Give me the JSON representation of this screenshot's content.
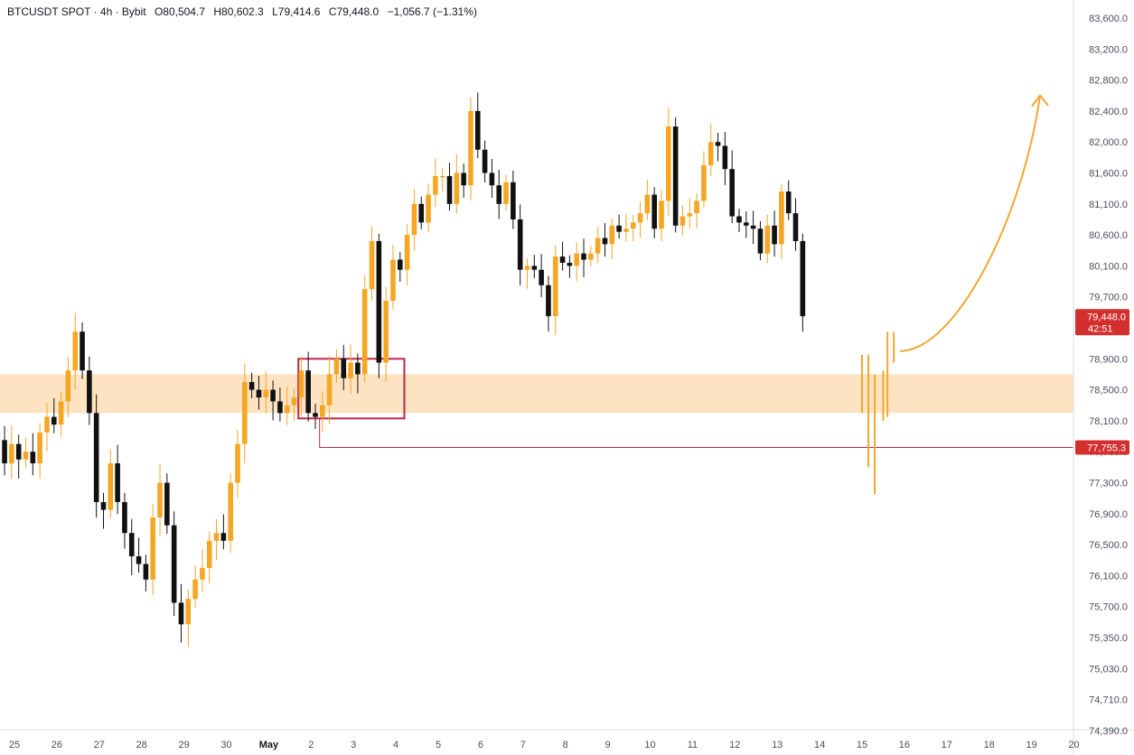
{
  "header": {
    "symbol": "BTCUSDT SPOT · 4h · Bybit",
    "open_label": "O",
    "open": "80,504.7",
    "high_label": "H",
    "high": "80,602.3",
    "low_label": "L",
    "low": "79,414.6",
    "close_label": "C",
    "close": "79,448.0",
    "change": "−1,056.7 (−1.31%)"
  },
  "colors": {
    "up": "#f5a623",
    "down": "#111111",
    "zone": "#fde3c2",
    "box": "#c0264a",
    "level_line": "#c0264a",
    "tag_red": "#d32f2f",
    "arrow": "#f0a830"
  },
  "chart_data": {
    "type": "candlestick",
    "symbol": "BTCUSDT SPOT · 4h · Bybit",
    "ylim": [
      74100,
      83800
    ],
    "y_ticks": [
      "83,600.0",
      "83,200.0",
      "82,800.0",
      "82,400.0",
      "82,000.0",
      "81,600.0",
      "81,100.0",
      "80,600.0",
      "80,100.0",
      "79,700.0",
      "79,300.0",
      "78,900.0",
      "78,500.0",
      "78,100.0",
      "77,700.0",
      "77,300.0",
      "76,900.0",
      "76,500.0",
      "76,100.0",
      "75,700.0",
      "75,350.0",
      "75,030.0",
      "74,710.0",
      "74,390.0"
    ],
    "y_tick_values": [
      83600,
      83200,
      82800,
      82400,
      82000,
      81600,
      81100,
      80600,
      80100,
      79700,
      79300,
      78900,
      78500,
      78100,
      77700,
      77300,
      76900,
      76500,
      76100,
      75700,
      75350,
      75030,
      74710,
      74390
    ],
    "x_ticks": [
      {
        "label": "25",
        "day": 25
      },
      {
        "label": "26",
        "day": 26
      },
      {
        "label": "27",
        "day": 27
      },
      {
        "label": "28",
        "day": 28
      },
      {
        "label": "29",
        "day": 29
      },
      {
        "label": "30",
        "day": 30
      },
      {
        "label": "May",
        "day": 31,
        "month": true
      },
      {
        "label": "2",
        "day": 32
      },
      {
        "label": "3",
        "day": 33
      },
      {
        "label": "4",
        "day": 34
      },
      {
        "label": "5",
        "day": 35
      },
      {
        "label": "6",
        "day": 36
      },
      {
        "label": "7",
        "day": 37
      },
      {
        "label": "8",
        "day": 38
      },
      {
        "label": "9",
        "day": 39
      },
      {
        "label": "10",
        "day": 40
      },
      {
        "label": "11",
        "day": 41
      },
      {
        "label": "12",
        "day": 42
      },
      {
        "label": "13",
        "day": 43
      },
      {
        "label": "14",
        "day": 44
      },
      {
        "label": "15",
        "day": 45
      },
      {
        "label": "16",
        "day": 46
      },
      {
        "label": "17",
        "day": 47
      },
      {
        "label": "18",
        "day": 48
      },
      {
        "label": "19",
        "day": 49
      },
      {
        "label": "20",
        "day": 50
      }
    ],
    "day_start": 24.6,
    "candles_per_day": 6,
    "closes": [
      77850,
      77550,
      77800,
      77600,
      77700,
      77550,
      77950,
      78150,
      78050,
      78350,
      78750,
      79250,
      78750,
      78200,
      77050,
      76950,
      77550,
      77050,
      76650,
      76350,
      76250,
      76050,
      76850,
      77300,
      76750,
      75750,
      75500,
      75800,
      76050,
      76200,
      76550,
      76650,
      76550,
      77300,
      77800,
      78600,
      78500,
      78400,
      78500,
      78350,
      78200,
      78300,
      78400,
      78750,
      78200,
      78150,
      78300,
      78700,
      78900,
      78650,
      78850,
      78700,
      79800,
      80500,
      78850,
      79650,
      80200,
      80050,
      80600,
      81100,
      80800,
      81250,
      81550,
      81550,
      81100,
      81600,
      81400,
      82400,
      81900,
      81600,
      81400,
      81100,
      81450,
      80850,
      80050,
      80100,
      80050,
      79850,
      79450,
      80250,
      80150,
      80100,
      80300,
      80200,
      80300,
      80550,
      80450,
      80750,
      80650,
      80700,
      80800,
      80950,
      81250,
      80700,
      81150,
      82200,
      80750,
      80900,
      80950,
      81150,
      81700,
      82000,
      81950,
      81650,
      80900,
      80800,
      80750,
      80700,
      80300,
      80750,
      80450,
      81300,
      80950,
      80500,
      79450
    ],
    "annotations": {
      "support_zone": [
        78200,
        78700
      ],
      "consolidation_box": {
        "from_day": 31.7,
        "to_day": 34.2,
        "low": 78130,
        "high": 78900
      },
      "level_line": {
        "from_day": 32.2,
        "value": 77755.3,
        "label": "77,755.3"
      },
      "last_price": {
        "value": 79448.0,
        "label": "79,448.0",
        "countdown": "42:51"
      },
      "projection": {
        "type": "wicks then upward arrow",
        "target_day": 49.2,
        "target_value": 82600
      }
    }
  }
}
